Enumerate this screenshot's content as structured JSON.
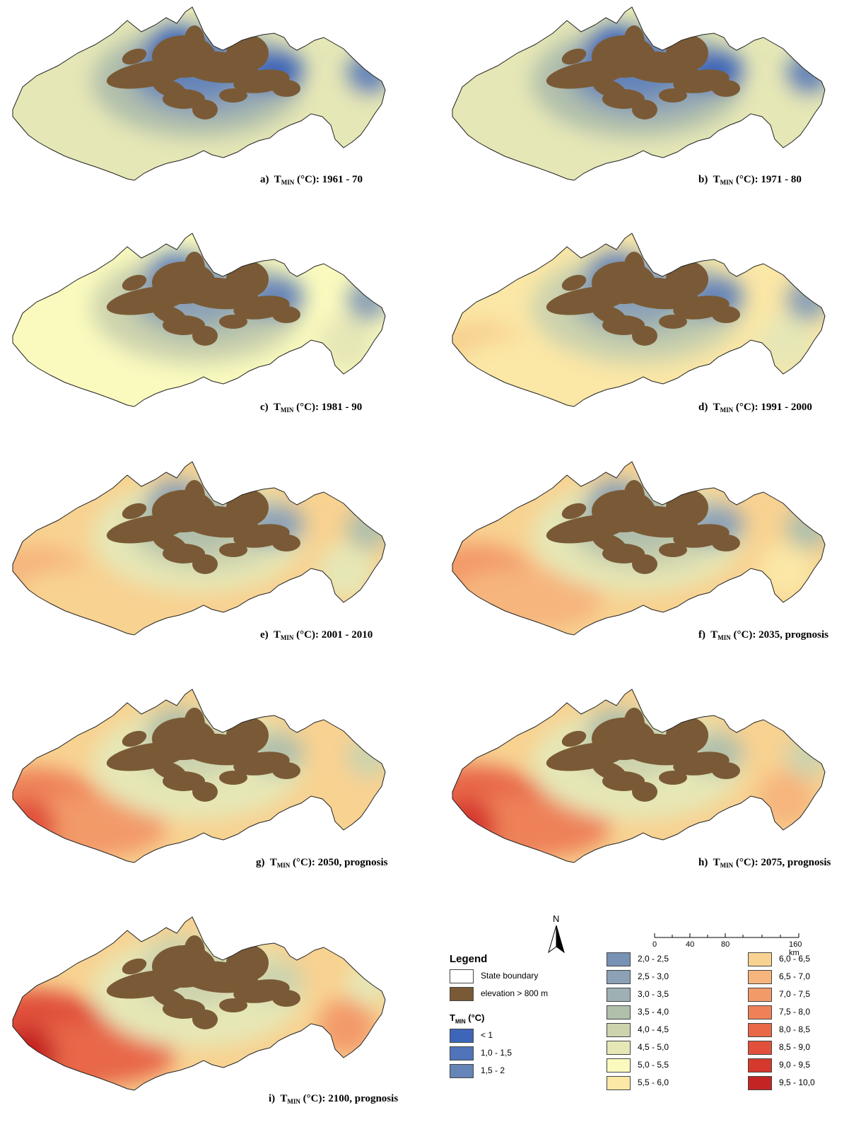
{
  "panels": [
    {
      "prefix": "a)",
      "var": "T",
      "sub": "MIN",
      "suffix": " (°C): 1961 - 70",
      "warm": 0
    },
    {
      "prefix": "b)",
      "var": "T",
      "sub": "MIN",
      "suffix": " (°C): 1971 - 80",
      "warm": 1
    },
    {
      "prefix": "c)",
      "var": "T",
      "sub": "MIN",
      "suffix": " (°C): 1981 - 90",
      "warm": 2
    },
    {
      "prefix": "d)",
      "var": "T",
      "sub": "MIN",
      "suffix": " (°C): 1991 - 2000",
      "warm": 3
    },
    {
      "prefix": "e)",
      "var": "T",
      "sub": "MIN",
      "suffix": " (°C): 2001 - 2010",
      "warm": 4
    },
    {
      "prefix": "f)",
      "var": "T",
      "sub": "MIN",
      "suffix": " (°C): 2035, prognosis",
      "warm": 5
    },
    {
      "prefix": "g)",
      "var": "T",
      "sub": "MIN",
      "suffix": " (°C): 2050, prognosis",
      "warm": 6
    },
    {
      "prefix": "h)",
      "var": "T",
      "sub": "MIN",
      "suffix": " (°C): 2075, prognosis",
      "warm": 7
    },
    {
      "prefix": "i)",
      "var": "T",
      "sub": "MIN",
      "suffix": " (°C): 2100, prognosis",
      "warm": 8
    }
  ],
  "legend": {
    "title": "Legend",
    "state_boundary": "State boundary",
    "elevation": "elevation > 800 m",
    "tmin_title_var": "T",
    "tmin_title_sub": "MIN",
    "tmin_title_unit": " (°C)",
    "elevation_color": "#7a5a36",
    "classes": [
      {
        "label": "< 1",
        "color": "#3d66b8"
      },
      {
        "label": "1,0 - 1,5",
        "color": "#4f74ba"
      },
      {
        "label": "1,5 - 2",
        "color": "#6584b8"
      },
      {
        "label": "2,0 - 2,5",
        "color": "#7892b6"
      },
      {
        "label": "2,5 - 3,0",
        "color": "#8ca1b6"
      },
      {
        "label": "3,0 - 3,5",
        "color": "#9fb0b4"
      },
      {
        "label": "3,5 - 4,0",
        "color": "#b1bfab"
      },
      {
        "label": "4,0 - 4,5",
        "color": "#cdd3ad"
      },
      {
        "label": "4,5 - 5,0",
        "color": "#e6e7b6"
      },
      {
        "label": "5,0 - 5,5",
        "color": "#fafabe"
      },
      {
        "label": "5,5 - 6,0",
        "color": "#fbe7a6"
      },
      {
        "label": "6,0 - 6,5",
        "color": "#f8d291"
      },
      {
        "label": "6,5 - 7,0",
        "color": "#f6b57d"
      },
      {
        "label": "7,0 - 7,5",
        "color": "#f39a69"
      },
      {
        "label": "7,5 - 8,0",
        "color": "#ee8158"
      },
      {
        "label": "8,0 - 8,5",
        "color": "#e86848"
      },
      {
        "label": "8,5 - 9,0",
        "color": "#e0503a"
      },
      {
        "label": "9,0 - 9,5",
        "color": "#d5392d"
      },
      {
        "label": "9,5 - 10,0",
        "color": "#c42424"
      }
    ]
  },
  "north": "N",
  "scale": {
    "ticks": [
      "0",
      "40",
      "80",
      "160 km"
    ]
  }
}
